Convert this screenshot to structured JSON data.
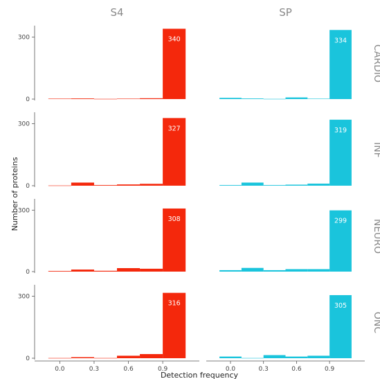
{
  "chart_data": {
    "type": "bar",
    "layout": "facet-grid",
    "xlabel": "Detection frequency",
    "ylabel": "Number of proteins",
    "x_ticks": [
      "0.0",
      "0.3",
      "0.6",
      "0.9"
    ],
    "y_ticks": [
      "0",
      "300"
    ],
    "ylim": [
      0,
      345
    ],
    "bins": [
      [
        -0.1,
        0.1
      ],
      [
        0.1,
        0.3
      ],
      [
        0.3,
        0.5
      ],
      [
        0.5,
        0.7
      ],
      [
        0.7,
        0.9
      ],
      [
        0.9,
        1.1
      ]
    ],
    "xlim": [
      -0.22,
      1.22
    ],
    "grid": false,
    "columns": [
      {
        "name": "S4",
        "color": "#f4280c"
      },
      {
        "name": "SP",
        "color": "#1ac4dc"
      }
    ],
    "rows": [
      {
        "name": "CARDIO",
        "display": "CARDIO"
      },
      {
        "name": "INF",
        "display": "INF"
      },
      {
        "name": "NEURO",
        "display": "NEURO"
      },
      {
        "name": "ONC",
        "display": "ONC"
      }
    ],
    "panels": [
      {
        "row": "CARDIO",
        "col": "S4",
        "values": [
          2,
          3,
          1,
          2,
          4,
          340
        ],
        "label": "340"
      },
      {
        "row": "CARDIO",
        "col": "SP",
        "values": [
          6,
          3,
          1,
          8,
          2,
          334
        ],
        "label": "334"
      },
      {
        "row": "INF",
        "col": "S4",
        "values": [
          1,
          15,
          3,
          6,
          9,
          327
        ],
        "label": "327"
      },
      {
        "row": "INF",
        "col": "SP",
        "values": [
          3,
          15,
          3,
          5,
          10,
          319
        ],
        "label": "319"
      },
      {
        "row": "NEURO",
        "col": "S4",
        "values": [
          3,
          10,
          4,
          17,
          14,
          308
        ],
        "label": "308"
      },
      {
        "row": "NEURO",
        "col": "SP",
        "values": [
          7,
          18,
          7,
          12,
          12,
          299
        ],
        "label": "299"
      },
      {
        "row": "ONC",
        "col": "S4",
        "values": [
          1,
          5,
          1,
          12,
          20,
          316
        ],
        "label": "316"
      },
      {
        "row": "ONC",
        "col": "SP",
        "values": [
          8,
          1,
          15,
          8,
          12,
          305
        ],
        "label": "305"
      }
    ]
  }
}
